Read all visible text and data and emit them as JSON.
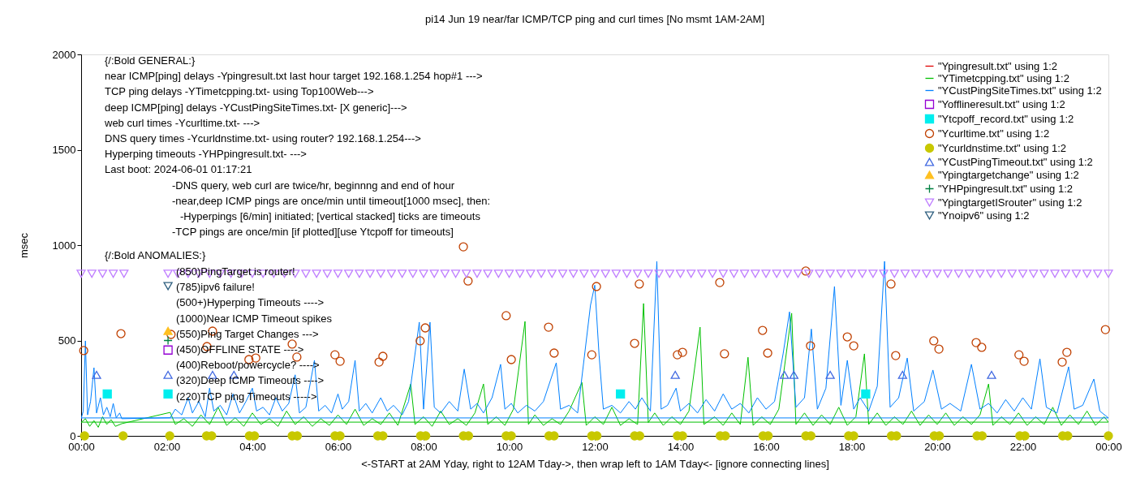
{
  "chart_data": {
    "type": "line",
    "title": "pi14 Jun 19  near/far ICMP/TCP ping and curl times [No msmt 1AM-2AM]",
    "xlabel": "<-START at 2AM Yday, right to 12AM Tday->, then wrap left to 1AM Tday<- [ignore connecting lines]",
    "ylabel": "msec",
    "xlim": [
      0,
      24
    ],
    "xticks": [
      {
        "value": 0,
        "label": "00:00"
      },
      {
        "value": 2,
        "label": "02:00"
      },
      {
        "value": 4,
        "label": "04:00"
      },
      {
        "value": 6,
        "label": "06:00"
      },
      {
        "value": 8,
        "label": "08:00"
      },
      {
        "value": 10,
        "label": "10:00"
      },
      {
        "value": 12,
        "label": "12:00"
      },
      {
        "value": 14,
        "label": "14:00"
      },
      {
        "value": 16,
        "label": "16:00"
      },
      {
        "value": 18,
        "label": "18:00"
      },
      {
        "value": 20,
        "label": "20:00"
      },
      {
        "value": 22,
        "label": "22:00"
      },
      {
        "value": 24,
        "label": "00:00"
      }
    ],
    "ylim": [
      0,
      2000
    ],
    "yticks": [
      0,
      500,
      1000,
      1500,
      2000
    ],
    "grid": false,
    "legend": "top right",
    "line_style": "solid",
    "annotations": [
      "{/:Bold GENERAL:}",
      "near ICMP[ping] delays -Ypingresult.txt last hour target 192.168.1.254 hop#1 --->",
      "TCP ping delays -YTimetcpping.txt- using Top100Web--->",
      "deep ICMP[ping] delays -YCustPingSiteTimes.txt- [X generic]--->",
      "web curl times -Ycurltime.txt- --->",
      "DNS query times -Ycurldnstime.txt- using router? 192.168.1.254--->",
      "Hyperping timeouts -YHPpingresult.txt- --->",
      "Last boot: 2024-06-01 01:17:21",
      "-DNS query, web curl are twice/hr, beginnng and end of hour",
      "-near,deep ICMP pings are once/min until timeout[1000 msec], then:",
      "-Hyperpings [6/min] initiated; [vertical stacked] ticks are timeouts",
      "-TCP pings are once/min [if plotted][use Ytcpoff for timeouts]",
      "{/:Bold ANOMALIES:}",
      "(850)PingTarget is router!",
      "(785)ipv6 failure!",
      "(500+)Hyperping Timeouts ---->",
      "(1000)Near ICMP Timeout spikes",
      "(550)Ping Target Changes --->",
      "(450)OFFLINE STATE ---->",
      "(400)Reboot/powercycle? ---->",
      "(320)Deep ICMP Timeouts ---->",
      "(220)TCP ping Timeouts ----->"
    ],
    "series": [
      {
        "name": "\"Ypingresult.txt\" using 1:2",
        "color": "#e00000"
      },
      {
        "name": "\"YTimetcpping.txt\" using 1:2",
        "color": "#00c000",
        "x": [
          0.0,
          0.1,
          0.2,
          0.3,
          0.4,
          0.5,
          0.6,
          0.7,
          0.8,
          0.95,
          2.08,
          2.2,
          2.4,
          2.6,
          2.8,
          3.0,
          3.2,
          3.4,
          3.6,
          3.8,
          4.0,
          4.2,
          4.4,
          4.6,
          4.8,
          5.0,
          5.2,
          5.4,
          5.6,
          5.8,
          6.0,
          6.2,
          6.4,
          6.6,
          6.8,
          7.0,
          7.2,
          7.4,
          7.7,
          7.8,
          8.0,
          8.2,
          8.4,
          8.6,
          8.8,
          9.0,
          9.2,
          9.4,
          9.5,
          9.7,
          9.9,
          10.1,
          10.37,
          10.45,
          10.6,
          10.8,
          11.0,
          11.2,
          11.4,
          11.7,
          11.8,
          12.0,
          12.2,
          12.4,
          12.6,
          12.8,
          13.0,
          13.14,
          13.25,
          13.4,
          13.6,
          13.8,
          14.0,
          14.2,
          14.46,
          14.55,
          14.8,
          15.0,
          15.2,
          15.4,
          15.58,
          15.7,
          15.9,
          16.1,
          16.3,
          16.6,
          16.7,
          16.9,
          17.1,
          17.3,
          17.5,
          17.7,
          17.9,
          18.1,
          18.3,
          18.4,
          18.6,
          18.8,
          19.0,
          19.2,
          19.4,
          19.6,
          19.8,
          20.0,
          20.2,
          20.4,
          20.6,
          20.8,
          21.0,
          21.2,
          21.3,
          21.5,
          21.7,
          21.9,
          22.1,
          22.3,
          22.5,
          22.7,
          22.9,
          23.1,
          23.3,
          23.5,
          23.7,
          23.9,
          24.0,
          0.0
        ],
        "values": [
          70,
          90,
          50,
          80,
          45,
          100,
          60,
          85,
          50,
          64,
          123,
          60,
          90,
          50,
          110,
          60,
          150,
          55,
          95,
          50,
          120,
          60,
          90,
          50,
          130,
          60,
          100,
          50,
          90,
          55,
          110,
          60,
          140,
          55,
          90,
          60,
          120,
          55,
          272,
          60,
          100,
          50,
          130,
          60,
          90,
          55,
          120,
          272,
          60,
          100,
          55,
          140,
          600,
          60,
          110,
          55,
          90,
          60,
          130,
          280,
          55,
          100,
          60,
          150,
          55,
          90,
          60,
          694,
          70,
          120,
          55,
          100,
          60,
          130,
          570,
          60,
          100,
          55,
          120,
          60,
          412,
          55,
          100,
          60,
          140,
          643,
          60,
          120,
          55,
          110,
          60,
          150,
          55,
          100,
          430,
          60,
          120,
          55,
          100,
          60,
          130,
          55,
          110,
          60,
          120,
          55,
          100,
          60,
          110,
          272,
          55,
          100,
          60,
          120,
          55,
          100,
          60,
          150,
          55,
          110,
          60,
          130,
          55,
          100,
          72,
          72
        ]
      },
      {
        "name": "\"YCustPingSiteTimes.txt\" using 1:2",
        "color": "#0080ff",
        "x": [
          0.0,
          0.05,
          0.1,
          0.15,
          0.22,
          0.3,
          0.36,
          0.45,
          0.52,
          0.6,
          0.68,
          0.75,
          0.82,
          0.9,
          0.95,
          2.08,
          2.2,
          2.35,
          2.5,
          2.6,
          2.75,
          2.9,
          3.0,
          3.1,
          3.25,
          3.4,
          3.55,
          3.7,
          3.85,
          4.0,
          4.1,
          4.25,
          4.4,
          4.55,
          4.7,
          4.85,
          5.0,
          5.1,
          5.25,
          5.45,
          5.55,
          5.7,
          5.85,
          6.0,
          6.1,
          6.25,
          6.4,
          6.5,
          6.65,
          6.8,
          7.0,
          7.15,
          7.3,
          7.5,
          7.65,
          7.9,
          8.0,
          8.15,
          8.25,
          8.4,
          8.6,
          8.8,
          8.95,
          9.1,
          9.25,
          9.4,
          9.6,
          9.8,
          9.9,
          10.05,
          10.2,
          10.4,
          10.6,
          10.8,
          11.1,
          11.2,
          11.4,
          11.6,
          11.9,
          12.0,
          12.1,
          12.2,
          12.4,
          12.6,
          12.8,
          12.95,
          13.1,
          13.3,
          13.45,
          13.55,
          13.7,
          13.9,
          14.0,
          14.2,
          14.4,
          14.6,
          14.8,
          15.0,
          15.2,
          15.4,
          15.6,
          15.8,
          16.0,
          16.2,
          16.4,
          16.55,
          16.7,
          16.9,
          17.06,
          17.2,
          17.4,
          17.6,
          17.75,
          17.9,
          18.05,
          18.2,
          18.4,
          18.6,
          18.77,
          18.9,
          19.1,
          19.3,
          19.45,
          19.7,
          19.9,
          20.1,
          20.3,
          20.55,
          20.8,
          21.0,
          21.2,
          21.4,
          21.6,
          21.8,
          22.0,
          22.2,
          22.4,
          22.55,
          22.8,
          23.07,
          23.2,
          23.4,
          23.66,
          23.8,
          24.0,
          0.0
        ],
        "values": [
          90,
          130,
          498,
          110,
          180,
          357,
          120,
          200,
          110,
          150,
          100,
          170,
          95,
          120,
          90,
          95,
          140,
          110,
          200,
          120,
          180,
          100,
          250,
          130,
          160,
          110,
          220,
          120,
          180,
          250,
          130,
          150,
          110,
          200,
          130,
          170,
          320,
          120,
          150,
          396,
          130,
          160,
          120,
          220,
          140,
          180,
          396,
          130,
          170,
          120,
          200,
          130,
          160,
          110,
          180,
          596,
          140,
          596,
          150,
          120,
          180,
          130,
          350,
          140,
          170,
          120,
          200,
          375,
          140,
          170,
          120,
          160,
          130,
          180,
          383,
          140,
          160,
          120,
          685,
          790,
          425,
          140,
          160,
          120,
          180,
          140,
          200,
          130,
          915,
          140,
          160,
          250,
          130,
          170,
          120,
          190,
          130,
          220,
          140,
          170,
          120,
          200,
          140,
          180,
          430,
          650,
          150,
          200,
          560,
          140,
          250,
          783,
          160,
          396,
          140,
          200,
          130,
          260,
          915,
          150,
          200,
          408,
          130,
          180,
          345,
          140,
          170,
          130,
          375,
          140,
          170,
          120,
          190,
          130,
          200,
          140,
          404,
          150,
          120,
          362,
          140,
          160,
          298,
          130,
          94,
          94
        ]
      },
      {
        "name": "\"Yofflineresult.txt\" using 1:2",
        "type": "scatter",
        "marker": "square-open",
        "color": "#9400d3",
        "x": [
          2.03
        ],
        "values": [
          450
        ]
      },
      {
        "name": "\"Ytcpoff_record.txt\" using 1:2",
        "type": "scatter",
        "marker": "square",
        "color": "#00eeee",
        "x": [
          0.61,
          2.03,
          12.6,
          18.33
        ],
        "values": [
          220,
          220,
          220,
          220
        ]
      },
      {
        "name": "\"Ycurltime.txt\" using 1:2",
        "type": "scatter",
        "marker": "circle-open",
        "color": "#c04000",
        "x": [
          0.06,
          0.93,
          2.1,
          2.94,
          3.07,
          3.92,
          4.08,
          4.93,
          5.04,
          5.93,
          6.05,
          6.96,
          7.05,
          7.92,
          8.04,
          8.93,
          9.04,
          9.93,
          10.05,
          10.92,
          11.05,
          11.93,
          12.04,
          12.93,
          13.04,
          13.93,
          14.05,
          14.92,
          15.03,
          15.92,
          16.04,
          16.93,
          17.04,
          17.9,
          18.05,
          18.92,
          19.03,
          19.92,
          20.04,
          20.91,
          21.04,
          21.91,
          22.03,
          22.92,
          23.03,
          23.93
        ],
        "values": [
          447,
          536,
          532,
          468,
          549,
          400,
          408,
          481,
          413,
          425,
          391,
          387,
          417,
          498,
          566,
          991,
          812,
          630,
          400,
          570,
          434,
          425,
          783,
          485,
          796,
          425,
          438,
          804,
          430,
          553,
          434,
          864,
          472,
          519,
          472,
          796,
          421,
          498,
          455,
          489,
          464,
          425,
          391,
          387,
          438,
          557
        ]
      },
      {
        "name": "\"Ycurldnstime.txt\" using 1:2",
        "type": "scatter",
        "marker": "circle",
        "color": "#c8c800",
        "x": [
          0.08,
          0.98,
          2.07,
          2.93,
          3.05,
          3.93,
          4.05,
          4.93,
          5.05,
          5.93,
          6.05,
          6.93,
          7.05,
          7.93,
          8.05,
          8.93,
          9.05,
          9.93,
          10.05,
          10.93,
          11.05,
          11.93,
          12.05,
          12.93,
          13.05,
          13.93,
          14.05,
          14.93,
          15.05,
          15.93,
          16.05,
          16.93,
          17.05,
          17.93,
          18.05,
          18.93,
          19.05,
          19.93,
          20.05,
          20.93,
          21.05,
          21.93,
          22.05,
          22.93,
          23.05,
          24.0
        ],
        "values": [
          0,
          0,
          0,
          0,
          0,
          0,
          0,
          0,
          0,
          0,
          0,
          0,
          0,
          0,
          0,
          0,
          0,
          0,
          0,
          0,
          0,
          0,
          0,
          0,
          0,
          0,
          0,
          0,
          0,
          0,
          0,
          0,
          0,
          0,
          0,
          0,
          0,
          0,
          0,
          0,
          0,
          0,
          0,
          0,
          0,
          0
        ]
      },
      {
        "name": "\"YCustPingTimeout.txt\" using 1:2",
        "type": "scatter",
        "marker": "triangle-open",
        "color": "#4169e1",
        "x": [
          0.36,
          2.03,
          3.07,
          3.57,
          13.88,
          16.43,
          16.65,
          17.5,
          19.19,
          21.27
        ],
        "values": [
          320,
          320,
          320,
          320,
          320,
          320,
          320,
          320,
          320,
          320
        ]
      },
      {
        "name": "\"Ypingtargetchange\" using 1:2",
        "type": "scatter",
        "marker": "triangle",
        "color": "#ffc020",
        "x": [
          2.03
        ],
        "values": [
          550
        ]
      },
      {
        "name": "\"YHPpingresult.txt\" using 1:2",
        "type": "scatter",
        "marker": "cross",
        "color": "#008040",
        "x": [
          2.03
        ],
        "values": [
          500
        ]
      },
      {
        "name": "\"YpingtargetISrouter\" using 1:2",
        "type": "scatter",
        "marker": "triangle-down-open",
        "color": "#c080ff",
        "x": [
          0,
          0.25,
          0.5,
          0.75,
          1.0,
          2.03,
          2.25,
          2.5,
          2.75,
          3,
          3.25,
          3.5,
          3.75,
          4,
          4.25,
          4.5,
          4.75,
          5,
          5.25,
          5.5,
          5.75,
          6,
          6.25,
          6.5,
          6.75,
          7,
          7.25,
          7.5,
          7.75,
          8,
          8.25,
          8.5,
          8.75,
          9,
          9.25,
          9.5,
          9.75,
          10,
          10.25,
          10.5,
          10.75,
          11,
          11.25,
          11.5,
          11.75,
          12,
          12.25,
          12.5,
          12.75,
          13,
          13.25,
          13.5,
          13.75,
          14,
          14.25,
          14.5,
          14.75,
          15,
          15.25,
          15.5,
          15.75,
          16,
          16.25,
          16.5,
          16.75,
          17,
          17.25,
          17.5,
          17.75,
          18,
          18.25,
          18.5,
          18.75,
          19,
          19.25,
          19.5,
          19.75,
          20,
          20.25,
          20.5,
          20.75,
          21,
          21.25,
          21.5,
          21.75,
          22,
          22.25,
          22.5,
          22.75,
          23,
          23.25,
          23.5,
          23.75,
          24
        ],
        "values": [
          850,
          850,
          850,
          850,
          850,
          850,
          850,
          850,
          850,
          850,
          850,
          850,
          850,
          850,
          850,
          850,
          850,
          850,
          850,
          850,
          850,
          850,
          850,
          850,
          850,
          850,
          850,
          850,
          850,
          850,
          850,
          850,
          850,
          850,
          850,
          850,
          850,
          850,
          850,
          850,
          850,
          850,
          850,
          850,
          850,
          850,
          850,
          850,
          850,
          850,
          850,
          850,
          850,
          850,
          850,
          850,
          850,
          850,
          850,
          850,
          850,
          850,
          850,
          850,
          850,
          850,
          850,
          850,
          850,
          850,
          850,
          850,
          850,
          850,
          850,
          850,
          850,
          850,
          850,
          850,
          850,
          850,
          850,
          850,
          850,
          850,
          850,
          850,
          850,
          850,
          850,
          850,
          850,
          850
        ]
      },
      {
        "name": "\"Ynoipv6\" using 1:2",
        "type": "scatter",
        "marker": "triangle-down-open",
        "color": "#306080",
        "x": [
          2.03
        ],
        "values": [
          785
        ]
      }
    ]
  }
}
